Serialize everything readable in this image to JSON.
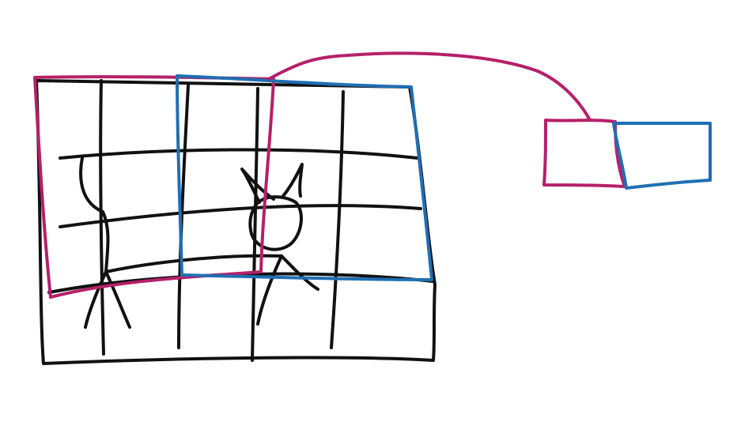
{
  "colors": {
    "ink": "#111111",
    "window_a": "#b5206a",
    "window_b": "#1f6fb3",
    "background": "#ffffff"
  },
  "diagram": {
    "grid": {
      "columns": 5,
      "rows": 4
    },
    "figure": "stick-figure-cat",
    "windows": [
      "window_a",
      "window_b"
    ],
    "outputs": [
      "output_a",
      "output_b"
    ]
  }
}
